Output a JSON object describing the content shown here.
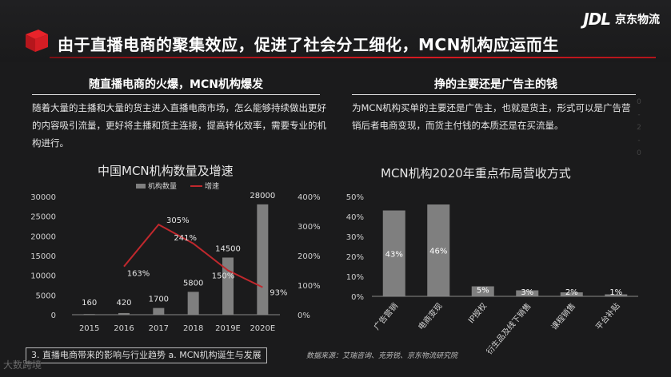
{
  "header": {
    "title": "由于直播电商的聚集效应，促进了社会分工细化，MCN机构应运而生",
    "logo_mark": "JDL",
    "logo_text": "京东物流"
  },
  "left": {
    "section_title": "随直播电商的火爆，MCN机构爆发",
    "paragraph": "随着大量的主播和大量的货主进入直播电商市场，怎么能够持续做出更好的内容吸引流量，更好将主播和货主连接，提高转化效率，需要专业的机构进行。"
  },
  "right": {
    "section_title": "挣的主要还是广告主的钱",
    "paragraph": "为MCN机构买单的主要还是广告主，也就是货主，形式可以是广告营销后者电商变现，而货主付钱的本质还是在买流量。"
  },
  "vertical_deco": "0 - 2 - 0",
  "chart_data": [
    {
      "type": "bar",
      "title": "中国MCN机构数量及增速",
      "categories": [
        "2015",
        "2016",
        "2017",
        "2018",
        "2019E",
        "2020E"
      ],
      "series": [
        {
          "name": "机构数量",
          "type": "bar",
          "values": [
            160,
            420,
            1700,
            5800,
            14500,
            28000
          ],
          "labels": [
            "160",
            "420",
            "1700",
            "5800",
            "14500",
            "28000"
          ],
          "color": "#7f7f7f"
        },
        {
          "name": "增速",
          "type": "line",
          "axis": "right",
          "values": [
            null,
            163,
            305,
            241,
            150,
            93
          ],
          "labels": [
            "",
            "163%",
            "305%",
            "241%",
            "150%",
            "93%"
          ],
          "color": "#c0282d"
        }
      ],
      "left_axis": {
        "ylim": [
          0,
          30000
        ],
        "ticks": [
          "0",
          "5000",
          "10000",
          "15000",
          "20000",
          "25000",
          "30000"
        ]
      },
      "right_axis": {
        "ylim": [
          0,
          400
        ],
        "ticks": [
          "0%",
          "100%",
          "200%",
          "300%",
          "400%"
        ]
      },
      "legend": "top"
    },
    {
      "type": "bar",
      "title": "MCN机构2020年重点布局营收方式",
      "categories": [
        "广告营销",
        "电商变现",
        "IP授权",
        "衍生品及线下销售",
        "课程销售",
        "平台补贴"
      ],
      "values": [
        43,
        46,
        5,
        3,
        2,
        1
      ],
      "labels": [
        "43%",
        "46%",
        "5%",
        "3%",
        "2%",
        "1%"
      ],
      "ylim": [
        0,
        50
      ],
      "ticks": [
        "0%",
        "10%",
        "20%",
        "30%",
        "40%",
        "50%"
      ],
      "color": "#7f7f7f"
    }
  ],
  "footer": {
    "breadcrumb": "3. 直播电商带来的影响与行业趋势    a. MCN机构诞生与发展",
    "source": "数据来源：艾瑞咨询、克劳锐、京东物流研究院",
    "watermark": "大数跨境"
  }
}
